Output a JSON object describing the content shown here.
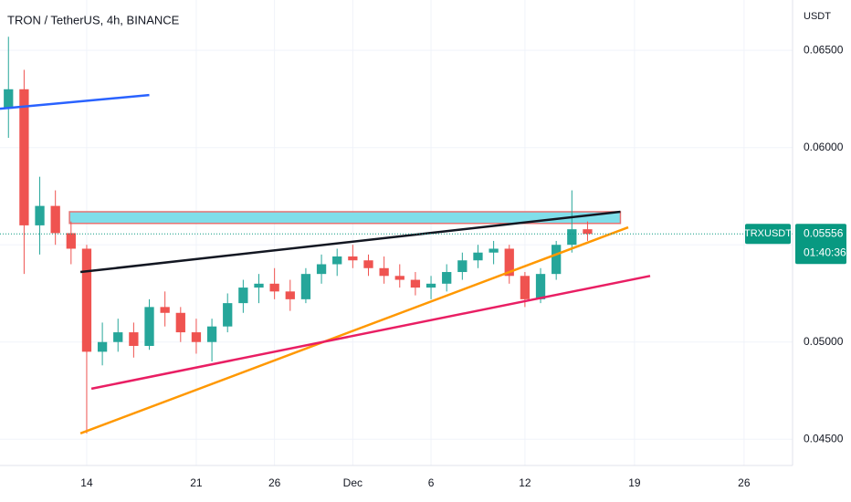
{
  "chart_data": {
    "type": "candlestick",
    "title": "TRON / TetherUS, 4h, BINANCE",
    "y_unit": "USDT",
    "symbol": "TRXUSDT",
    "last_price": 0.05556,
    "countdown": "01:40:36",
    "up_color": "#26a69a",
    "down_color": "#ef5350",
    "grid": true,
    "xlim": [
      8.46,
      59.1
    ],
    "ylim": [
      0.04365,
      0.06759
    ],
    "xticks": [
      {
        "value": 14,
        "label": "14"
      },
      {
        "value": 21,
        "label": "21"
      },
      {
        "value": 26,
        "label": "26"
      },
      {
        "value": 31,
        "label": "Dec"
      },
      {
        "value": 36,
        "label": "6"
      },
      {
        "value": 42,
        "label": "12"
      },
      {
        "value": 49,
        "label": "19"
      },
      {
        "value": 56,
        "label": "26"
      }
    ],
    "yticks": [
      {
        "value": 0.045,
        "label": "0.04500"
      },
      {
        "value": 0.05,
        "label": "0.05000"
      },
      {
        "value": 0.055,
        "label": "0.05500"
      },
      {
        "value": 0.06,
        "label": "0.06000"
      },
      {
        "value": 0.065,
        "label": "0.06500"
      }
    ],
    "x": [
      9,
      10,
      11,
      12,
      13,
      14,
      15,
      16,
      17,
      18,
      19,
      20,
      21,
      22,
      23,
      24,
      25,
      26,
      27,
      28,
      29,
      30,
      31,
      32,
      33,
      34,
      35,
      36,
      37,
      38,
      39,
      40,
      41,
      42,
      43,
      44,
      45,
      46
    ],
    "open": [
      0.062,
      0.063,
      0.056,
      0.057,
      0.0556,
      0.0548,
      0.0495,
      0.05,
      0.0505,
      0.0498,
      0.0518,
      0.0515,
      0.0505,
      0.05,
      0.0508,
      0.052,
      0.0528,
      0.053,
      0.0526,
      0.0522,
      0.0535,
      0.054,
      0.0544,
      0.0542,
      0.0538,
      0.0534,
      0.0532,
      0.0528,
      0.053,
      0.0536,
      0.0542,
      0.0546,
      0.0548,
      0.0534,
      0.0522,
      0.0535,
      0.055,
      0.0558
    ],
    "high": [
      0.0657,
      0.064,
      0.0585,
      0.0578,
      0.0562,
      0.055,
      0.051,
      0.0512,
      0.051,
      0.0522,
      0.0526,
      0.0518,
      0.0512,
      0.0512,
      0.0525,
      0.0532,
      0.0535,
      0.0538,
      0.0532,
      0.0538,
      0.0545,
      0.0548,
      0.055,
      0.0545,
      0.0544,
      0.054,
      0.0536,
      0.0534,
      0.054,
      0.0546,
      0.055,
      0.0552,
      0.055,
      0.0536,
      0.0538,
      0.0552,
      0.0578,
      0.0562
    ],
    "low": [
      0.0605,
      0.0535,
      0.0545,
      0.055,
      0.054,
      0.0453,
      0.0488,
      0.0495,
      0.0492,
      0.0496,
      0.0508,
      0.05,
      0.0494,
      0.049,
      0.0505,
      0.0515,
      0.052,
      0.0522,
      0.0516,
      0.052,
      0.053,
      0.0534,
      0.0538,
      0.0534,
      0.053,
      0.0528,
      0.0524,
      0.0522,
      0.0526,
      0.0532,
      0.0538,
      0.054,
      0.053,
      0.0518,
      0.052,
      0.0532,
      0.0546,
      0.0552
    ],
    "close": [
      0.063,
      0.056,
      0.057,
      0.0556,
      0.0548,
      0.0495,
      0.05,
      0.0505,
      0.0498,
      0.0518,
      0.0515,
      0.0505,
      0.05,
      0.0508,
      0.052,
      0.0528,
      0.053,
      0.0526,
      0.0522,
      0.0535,
      0.054,
      0.0544,
      0.0542,
      0.0538,
      0.0534,
      0.0532,
      0.0528,
      0.053,
      0.0536,
      0.0542,
      0.0546,
      0.0548,
      0.0534,
      0.0522,
      0.0535,
      0.055,
      0.0558,
      0.05556
    ],
    "zones": [
      {
        "color": "#80deea",
        "border": "#e57373",
        "x": [
          12.9,
          48.1
        ],
        "y": [
          0.0567,
          0.0561
        ]
      }
    ],
    "lines": [
      {
        "color": "#2962ff",
        "x": [
          8.46,
          18.0
        ],
        "y": [
          0.062,
          0.0627
        ]
      },
      {
        "color": "#131722",
        "x": [
          13.6,
          48.1
        ],
        "y": [
          0.0536,
          0.0567
        ]
      },
      {
        "color": "#ff9800",
        "x": [
          13.6,
          48.6
        ],
        "y": [
          0.0453,
          0.0559
        ]
      },
      {
        "color": "#e91e63",
        "x": [
          14.3,
          50.0
        ],
        "y": [
          0.0476,
          0.0534
        ]
      }
    ]
  }
}
